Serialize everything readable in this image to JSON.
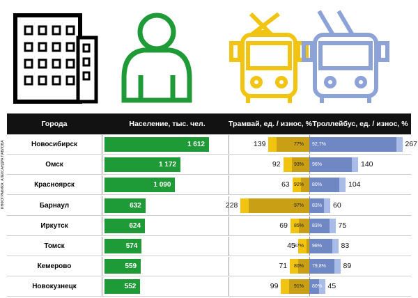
{
  "credit": "ИНФОГРАФИКА: АЛЕКСАНДРА ПАВЛОВА",
  "colors": {
    "population": "#1e9a37",
    "tram": "#f2c412",
    "tram_dark": "#c99f15",
    "trolleybus": "#a9bce8",
    "trolleybus_dark": "#6f87c2",
    "header": "#121212"
  },
  "icons": [
    "building-icon",
    "person-icon",
    "tram-icon",
    "trolleybus-icon"
  ],
  "chart_data": {
    "type": "table",
    "columns": [
      "Города",
      "Население, тыс. чел.",
      "Трамвай, ед. / износ, %",
      "Троллейбус, ед. / износ, %"
    ],
    "rows": [
      {
        "city": "Новосибирск",
        "population": 1612,
        "population_label": "1 612",
        "tram_units": 139,
        "tram_wear": "77%",
        "trolley_units": 267,
        "trolley_wear": "92,7%"
      },
      {
        "city": "Омск",
        "population": 1172,
        "population_label": "1 172",
        "tram_units": 92,
        "tram_wear": "93%",
        "trolley_units": 140,
        "trolley_wear": "96%"
      },
      {
        "city": "Красноярск",
        "population": 1090,
        "population_label": "1 090",
        "tram_units": 63,
        "tram_wear": "92%",
        "trolley_units": 104,
        "trolley_wear": "80%"
      },
      {
        "city": "Барнаул",
        "population": 632,
        "population_label": "632",
        "tram_units": 228,
        "tram_wear": "97%",
        "trolley_units": 60,
        "trolley_wear": "83%"
      },
      {
        "city": "Иркутск",
        "population": 624,
        "population_label": "624",
        "tram_units": 69,
        "tram_wear": "85%",
        "trolley_units": 75,
        "trolley_wear": "83%"
      },
      {
        "city": "Томск",
        "population": 574,
        "population_label": "574",
        "tram_units": 45,
        "tram_wear": "87%",
        "trolley_units": 83,
        "trolley_wear": "98%"
      },
      {
        "city": "Кемерово",
        "population": 559,
        "population_label": "559",
        "tram_units": 71,
        "tram_wear": "80%",
        "trolley_units": 89,
        "trolley_wear": "79,8%"
      },
      {
        "city": "Новокузнецк",
        "population": 552,
        "population_label": "552",
        "tram_units": 99,
        "tram_wear": "91%",
        "trolley_units": 45,
        "trolley_wear": "80%"
      }
    ]
  }
}
